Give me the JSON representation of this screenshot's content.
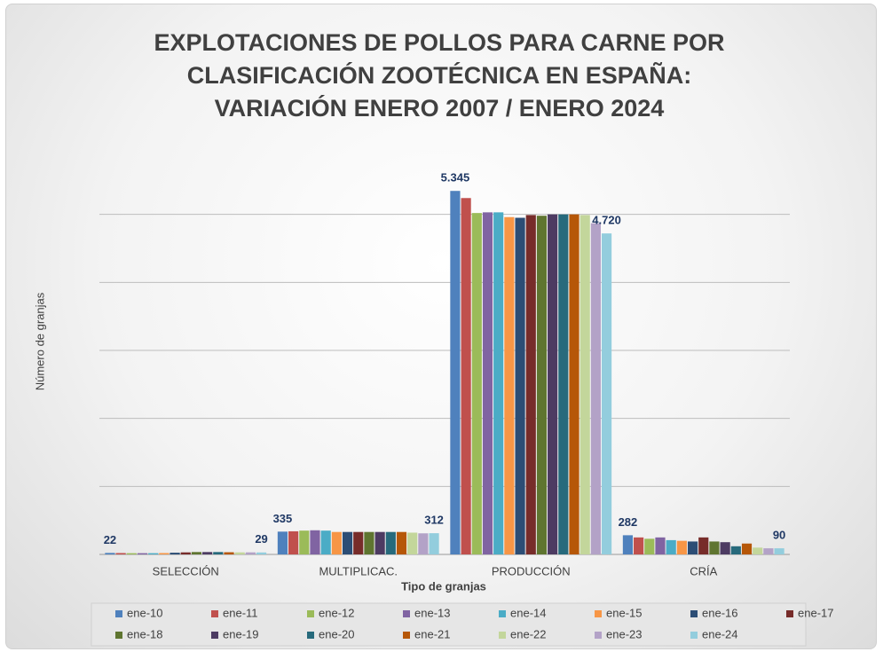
{
  "chart_data": {
    "type": "bar",
    "title": "EXPLOTACIONES DE POLLOS PARA CARNE POR CLASIFICACIÓN ZOOTÉCNICA EN ESPAÑA: VARIACIÓN ENERO 2007 / ENERO 2024",
    "x_label": "Tipo de granjas",
    "y_label": "Número de granjas",
    "categories": [
      "SELECCIÓN",
      "MULTIPLICAC.",
      "PRODUCCIÓN",
      "CRÍA"
    ],
    "ylim": [
      0,
      6000
    ],
    "yticks": [
      0,
      1000,
      2000,
      3000,
      4000,
      5000
    ],
    "grid": true,
    "legend": "bottom",
    "series": [
      {
        "name": "ene-10",
        "color": "#4f81bd",
        "values": [
          22,
          335,
          5345,
          282
        ],
        "value_labels": [
          "22",
          "335",
          "5.345",
          "282"
        ]
      },
      {
        "name": "ene-11",
        "color": "#c0504d",
        "values": [
          20,
          340,
          5240,
          250
        ]
      },
      {
        "name": "ene-12",
        "color": "#9bbb59",
        "values": [
          18,
          350,
          5020,
          230
        ]
      },
      {
        "name": "ene-13",
        "color": "#8064a2",
        "values": [
          18,
          355,
          5030,
          250
        ]
      },
      {
        "name": "ene-14",
        "color": "#4bacc6",
        "values": [
          18,
          350,
          5030,
          210
        ]
      },
      {
        "name": "ene-15",
        "color": "#f79646",
        "values": [
          20,
          330,
          4960,
          200
        ]
      },
      {
        "name": "ene-16",
        "color": "#2c4d75",
        "values": [
          25,
          330,
          4950,
          190
        ]
      },
      {
        "name": "ene-17",
        "color": "#772c2a",
        "values": [
          30,
          330,
          4990,
          250
        ]
      },
      {
        "name": "ene-18",
        "color": "#5f7530",
        "values": [
          35,
          330,
          4980,
          190
        ]
      },
      {
        "name": "ene-19",
        "color": "#4d3b62",
        "values": [
          35,
          330,
          5000,
          180
        ]
      },
      {
        "name": "ene-20",
        "color": "#276a7c",
        "values": [
          35,
          330,
          5000,
          120
        ]
      },
      {
        "name": "ene-21",
        "color": "#b65708",
        "values": [
          32,
          330,
          5000,
          160
        ]
      },
      {
        "name": "ene-22",
        "color": "#c3d69b",
        "values": [
          30,
          320,
          4990,
          100
        ]
      },
      {
        "name": "ene-23",
        "color": "#b3a2c7",
        "values": [
          30,
          310,
          4870,
          90
        ]
      },
      {
        "name": "ene-24",
        "color": "#93cddd",
        "values": [
          29,
          312,
          4720,
          90
        ],
        "value_labels": [
          "29",
          "312",
          "4.720",
          "90"
        ]
      }
    ]
  }
}
